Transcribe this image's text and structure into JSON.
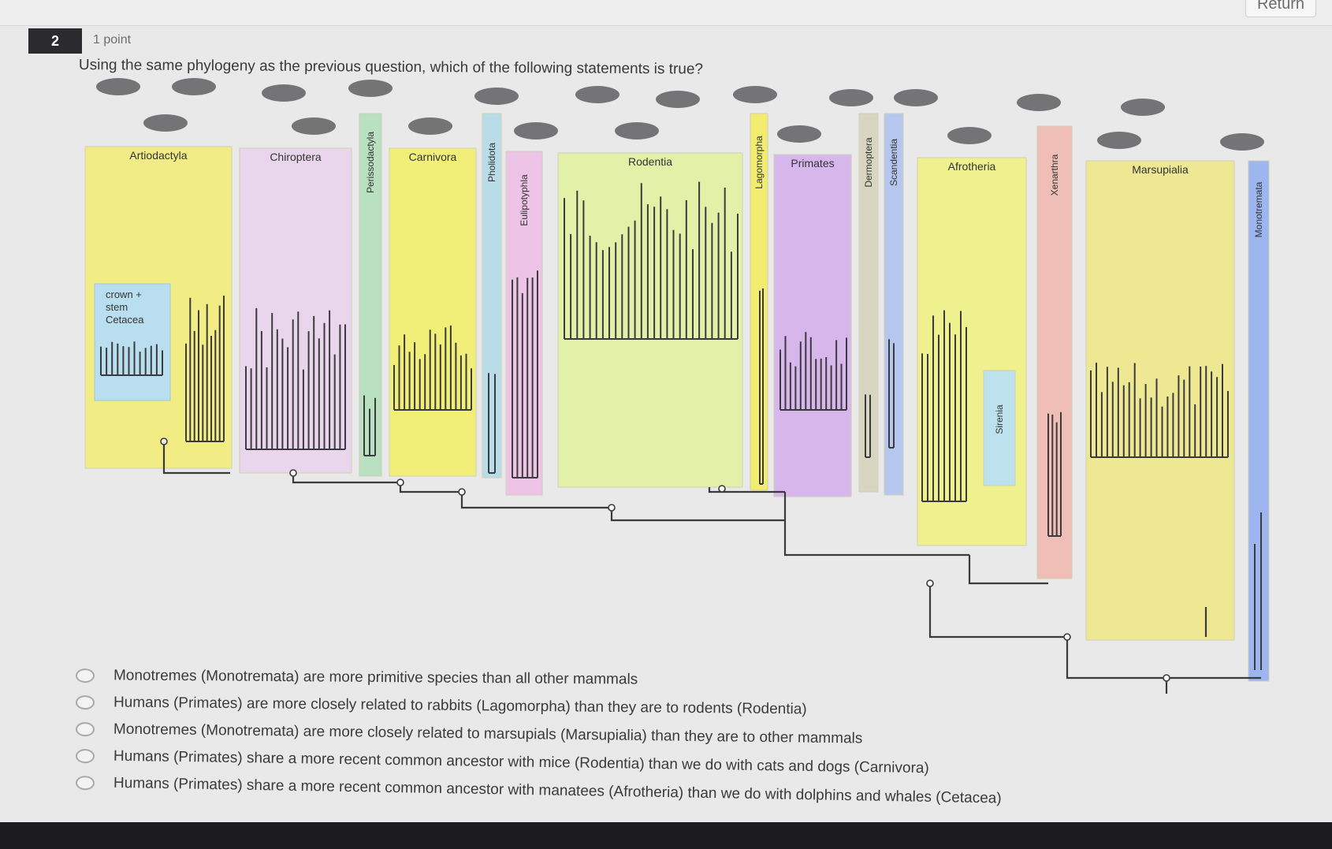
{
  "header": {
    "return_label": "Return"
  },
  "question": {
    "number": "2",
    "points": "1 point",
    "prompt": "Using the same phylogeny as the previous question, which of the following statements is true?"
  },
  "figure": {
    "annotation": "crown + stem Cetacea",
    "clades": [
      {
        "label": "Artiodactyla",
        "color": "#f1ed84"
      },
      {
        "label": "Chiroptera",
        "color": "#ead6ec"
      },
      {
        "label": "Perissodactyla",
        "color": "#b9e0c0"
      },
      {
        "label": "Carnivora",
        "color": "#f2ef78"
      },
      {
        "label": "Pholidota",
        "color": "#b9dde8"
      },
      {
        "label": "Eulipotyphla",
        "color": "#edc4e6"
      },
      {
        "label": "Rodentia",
        "color": "#e2f0a8"
      },
      {
        "label": "Lagomorpha",
        "color": "#f2ec70"
      },
      {
        "label": "Primates",
        "color": "#d7b6ec"
      },
      {
        "label": "Dermoptera",
        "color": "#d8d5c1"
      },
      {
        "label": "Scandentia",
        "color": "#b5c6ef"
      },
      {
        "label": "Afrotheria",
        "color": "#eff08e"
      },
      {
        "label": "Sirenia",
        "color": "#bde2ee"
      },
      {
        "label": "Xenarthra",
        "color": "#efbeb6"
      },
      {
        "label": "Marsupialia",
        "color": "#eee893"
      },
      {
        "label": "Monotremata",
        "color": "#9db6f0"
      }
    ]
  },
  "options": [
    {
      "text": "Monotremes (Monotremata) are more primitive species than all other mammals"
    },
    {
      "text": "Humans (Primates) are more closely related to rabbits (Lagomorpha) than they are to rodents (Rodentia)"
    },
    {
      "text": "Monotremes (Monotremata) are more closely related to marsupials (Marsupialia) than they are to other mammals"
    },
    {
      "text": "Humans (Primates) share a more recent common ancestor with mice (Rodentia) than we do with cats and dogs (Carnivora)"
    },
    {
      "text": "Humans (Primates) share a more recent common ancestor with manatees (Afrotheria) than we do with dolphins and whales (Cetacea)"
    }
  ]
}
